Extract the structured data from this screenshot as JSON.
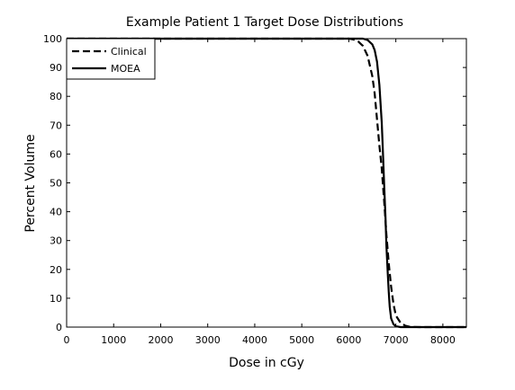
{
  "chart_data": {
    "type": "line",
    "title": "Example Patient 1 Target Dose Distributions",
    "xlabel": "Dose in cGy",
    "ylabel": "Percent Volume",
    "xlim": [
      0,
      8500
    ],
    "ylim": [
      0,
      100
    ],
    "xticks": [
      0,
      1000,
      2000,
      3000,
      4000,
      5000,
      6000,
      7000,
      8000
    ],
    "yticks": [
      0,
      10,
      20,
      30,
      40,
      50,
      60,
      70,
      80,
      90,
      100
    ],
    "grid": false,
    "legend_position": "top-left",
    "series": [
      {
        "name": "Clinical",
        "style": "dashed",
        "color": "#000000",
        "x": [
          0,
          6000,
          6100,
          6200,
          6300,
          6400,
          6500,
          6550,
          6600,
          6650,
          6700,
          6750,
          6800,
          6850,
          6900,
          6950,
          7000,
          7100,
          7200,
          7300,
          7500,
          8500
        ],
        "y": [
          100,
          100,
          99.7,
          99,
          97.5,
          94,
          87,
          81,
          72,
          63,
          55,
          44,
          32,
          22,
          14,
          8,
          4,
          1.5,
          0.5,
          0.1,
          0,
          0
        ]
      },
      {
        "name": "MOEA",
        "style": "solid",
        "color": "#000000",
        "x": [
          0,
          6300,
          6400,
          6500,
          6550,
          6600,
          6650,
          6700,
          6720,
          6750,
          6780,
          6800,
          6830,
          6850,
          6870,
          6900,
          6950,
          7000,
          7100,
          8500
        ],
        "y": [
          100,
          100,
          99.5,
          98,
          96,
          92,
          84,
          71,
          63,
          50,
          38,
          28,
          18,
          12,
          7,
          3,
          1,
          0.3,
          0,
          0
        ]
      }
    ]
  }
}
